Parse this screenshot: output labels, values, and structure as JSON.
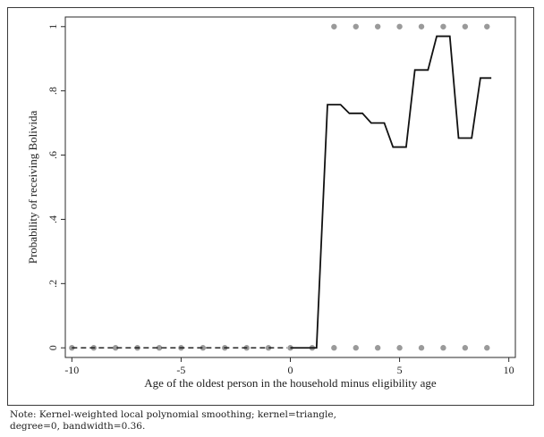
{
  "chart_data": {
    "type": "scatter",
    "xlabel": "Age of the oldest person in the household minus eligibility age",
    "ylabel": "Probability of receiving Bolivida",
    "xlim": [
      -10.3,
      10.3
    ],
    "ylim": [
      -0.03,
      1.03
    ],
    "x_ticks": [
      {
        "value": -10,
        "label": "-10"
      },
      {
        "value": -5,
        "label": "-5"
      },
      {
        "value": 0,
        "label": "0"
      },
      {
        "value": 5,
        "label": "5"
      },
      {
        "value": 10,
        "label": "10"
      }
    ],
    "y_ticks": [
      {
        "value": 0,
        "label": "0"
      },
      {
        "value": 0.2,
        "label": ".2"
      },
      {
        "value": 0.4,
        "label": ".4"
      },
      {
        "value": 0.6,
        "label": ".6"
      },
      {
        "value": 0.8,
        "label": ".8"
      },
      {
        "value": 1,
        "label": "1"
      }
    ],
    "grid": false,
    "legend": "none",
    "series": [
      {
        "kind": "points",
        "color": "#9a9a9a",
        "points": [
          [
            -10,
            0
          ],
          [
            -9,
            0
          ],
          [
            -8,
            0
          ],
          [
            -7,
            0
          ],
          [
            -6,
            0
          ],
          [
            -5,
            0
          ],
          [
            -4,
            0
          ],
          [
            -3,
            0
          ],
          [
            -2,
            0
          ],
          [
            -1,
            0
          ],
          [
            0,
            0
          ],
          [
            1,
            0
          ],
          [
            2,
            0
          ],
          [
            3,
            0
          ],
          [
            4,
            0
          ],
          [
            5,
            0
          ],
          [
            6,
            0
          ],
          [
            7,
            0
          ],
          [
            8,
            0
          ],
          [
            9,
            0
          ],
          [
            2,
            1
          ],
          [
            3,
            1
          ],
          [
            4,
            1
          ],
          [
            5,
            1
          ],
          [
            6,
            1
          ],
          [
            7,
            1
          ],
          [
            8,
            1
          ],
          [
            9,
            1
          ]
        ]
      },
      {
        "kind": "line",
        "style": "dashed",
        "color": "#111111",
        "x": [
          -10,
          -9,
          -8,
          -7,
          -6,
          -5,
          -4,
          -3,
          -2,
          -1,
          -0.15
        ],
        "y": [
          0,
          0,
          0,
          0,
          0,
          0,
          0,
          0,
          0,
          0,
          0
        ]
      },
      {
        "kind": "line",
        "style": "solid",
        "color": "#111111",
        "x": [
          0,
          1.2,
          1.7,
          2.3,
          2.7,
          3.3,
          3.7,
          4.3,
          4.7,
          5.3,
          5.7,
          6.3,
          6.7,
          7.3,
          7.7,
          8.3,
          8.7,
          9.2
        ],
        "y": [
          0,
          0,
          0.757,
          0.757,
          0.73,
          0.73,
          0.7,
          0.7,
          0.625,
          0.625,
          0.865,
          0.865,
          0.97,
          0.97,
          0.653,
          0.653,
          0.84,
          0.84
        ]
      }
    ]
  },
  "note": {
    "line1": "Note: Kernel-weighted local polynomial smoothing; kernel=triangle,",
    "line2": "degree=0, bandwidth=0.36."
  }
}
